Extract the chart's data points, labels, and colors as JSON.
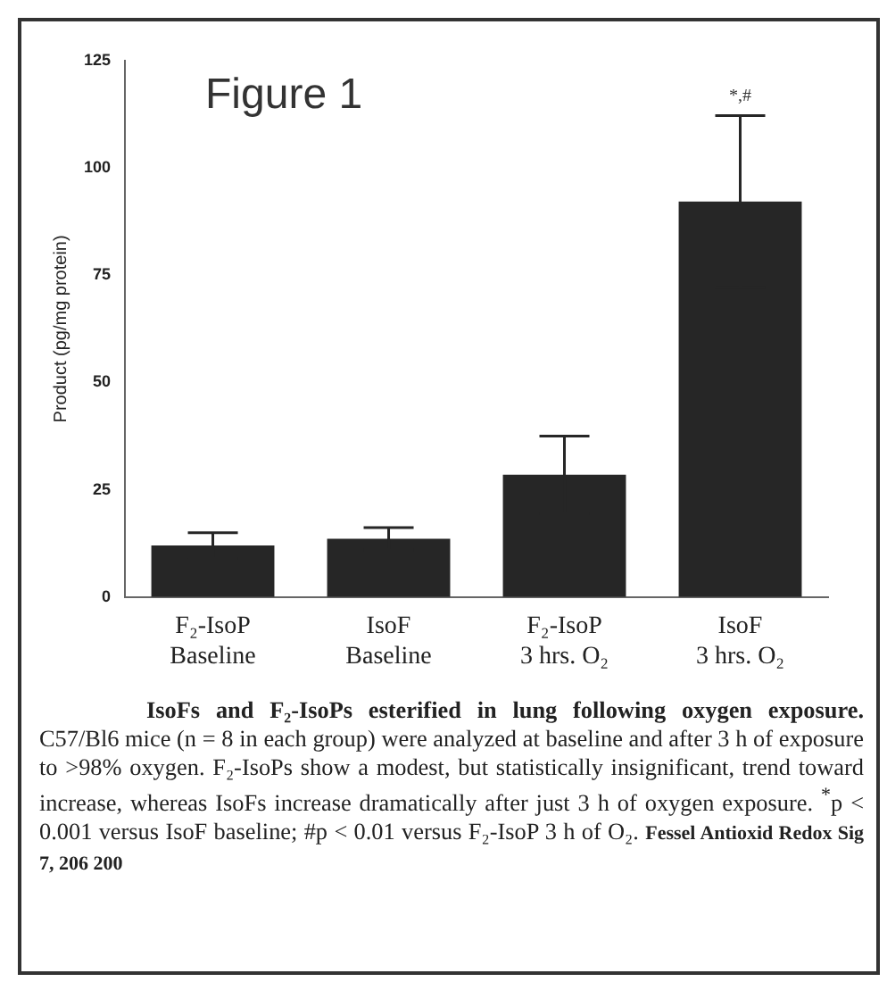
{
  "chart_data": {
    "type": "bar",
    "title": "Figure 1",
    "ylabel": "Product (pg/mg protein)",
    "categories": [
      "F₂-IsoP Baseline",
      "IsoF Baseline",
      "F₂-IsoP 3 hrs. O₂",
      "IsoF 3 hrs. O₂"
    ],
    "values": [
      12,
      13.6,
      28.5,
      92.2
    ],
    "errors": [
      3,
      2.6,
      9,
      20
    ],
    "color": "#262626",
    "ylim": [
      0,
      125
    ],
    "yticks": [
      0,
      25,
      50,
      75,
      100,
      125
    ],
    "grid": false,
    "legend": false,
    "annotations": [
      "*,#",
      "IsoFs and F₂-IsoPs esterified in lung following oxygen exposure.",
      "C57/Bl6 mice (n = 8 in each group) were analyzed at baseline and after 3 h of exposure to >98% oxygen. F₂-IsoPs show a modest, but statistically insignificant, trend toward increase, whereas IsoFs increase dramatically after just 3 h of oxygen exposure. $^{*}$p < 0.001 versus IsoF baseline; #p < 0.01 versus F₂-IsoP 3 h of O₂.",
      "Fessel Antioxid Redox Sig 7, 206 200"
    ]
  }
}
